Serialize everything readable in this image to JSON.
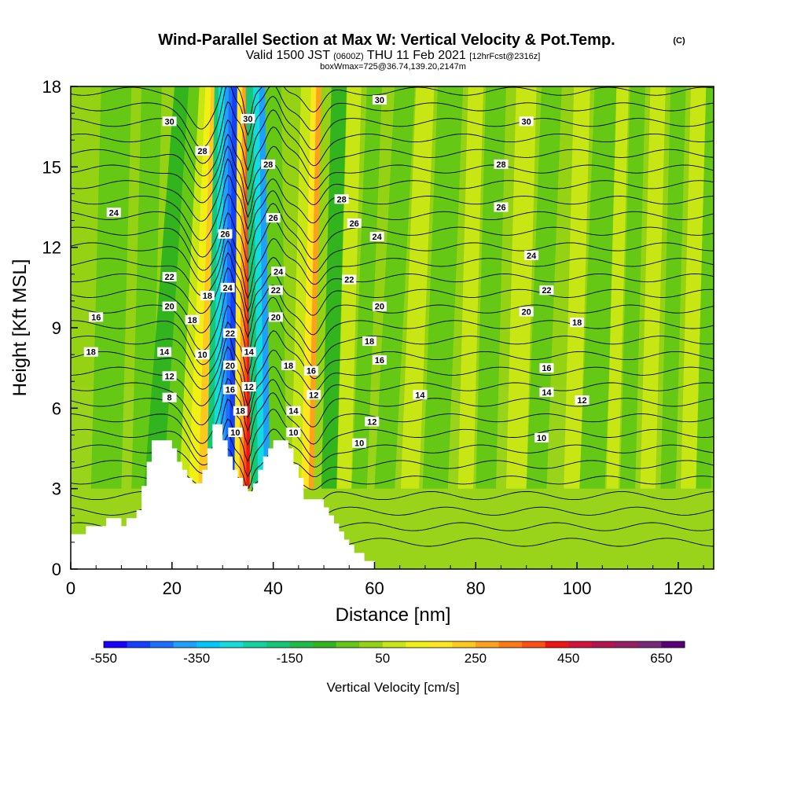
{
  "chart_data": {
    "type": "heatmap",
    "title": "Wind-Parallel Section at Max W: Vertical Velocity & Pot.Temp.",
    "title_mark": "(C)",
    "subtitle_prefix": "Valid 1500 JST",
    "subtitle_zone": "(0600Z)",
    "subtitle_date": "THU 11 Feb 2021",
    "subtitle_fcst": "[12hrFcst@2316z]",
    "subtitle2": "boxWmax=725@36.74,139.20,2147m",
    "xlabel": "Distance [nm]",
    "ylabel": "Height [Kft MSL]",
    "xlim": [
      0,
      127
    ],
    "ylim": [
      0,
      18
    ],
    "x_ticks": [
      "0",
      "20",
      "40",
      "60",
      "80",
      "100",
      "120"
    ],
    "y_ticks": [
      "0",
      "3",
      "6",
      "9",
      "12",
      "15",
      "18"
    ],
    "colorbar": {
      "label": "Vertical Velocity [cm/s]",
      "tick_labels": [
        "-550",
        "-350",
        "-150",
        "50",
        "250",
        "450",
        "650"
      ],
      "colors": [
        "#1a00ff",
        "#1440ff",
        "#1e6eff",
        "#1ea0ff",
        "#00c8ff",
        "#14dcdc",
        "#14d2a0",
        "#14c878",
        "#1ebe46",
        "#32b41e",
        "#64c814",
        "#96d214",
        "#c8e614",
        "#f0f014",
        "#ffe61e",
        "#ffc81e",
        "#ffa01e",
        "#ff7814",
        "#ff5014",
        "#f01414",
        "#d2143c",
        "#b41450",
        "#961e64",
        "#782878",
        "#5a0078"
      ]
    },
    "terrain": [
      [
        0,
        1.3
      ],
      [
        3,
        1.3
      ],
      [
        3,
        1.6
      ],
      [
        7,
        1.6
      ],
      [
        7,
        1.9
      ],
      [
        10,
        1.9
      ],
      [
        10,
        1.6
      ],
      [
        11,
        1.6
      ],
      [
        11,
        1.9
      ],
      [
        13,
        1.9
      ],
      [
        13,
        2.2
      ],
      [
        14,
        2.2
      ],
      [
        14,
        3.1
      ],
      [
        15,
        3.1
      ],
      [
        15,
        4.0
      ],
      [
        16,
        4.0
      ],
      [
        16,
        4.8
      ],
      [
        20,
        4.8
      ],
      [
        20,
        4.5
      ],
      [
        21,
        4.5
      ],
      [
        21,
        4.0
      ],
      [
        22,
        4.0
      ],
      [
        22,
        3.7
      ],
      [
        23,
        3.7
      ],
      [
        23,
        3.4
      ],
      [
        24,
        3.4
      ],
      [
        24,
        3.2
      ],
      [
        26,
        3.2
      ],
      [
        26,
        3.7
      ],
      [
        27,
        3.7
      ],
      [
        27,
        4.5
      ],
      [
        28,
        4.5
      ],
      [
        28,
        5.4
      ],
      [
        30,
        5.4
      ],
      [
        30,
        4.8
      ],
      [
        31,
        4.8
      ],
      [
        31,
        4.2
      ],
      [
        32,
        4.2
      ],
      [
        32,
        3.7
      ],
      [
        33,
        3.7
      ],
      [
        33,
        3.4
      ],
      [
        34,
        3.4
      ],
      [
        34,
        3.1
      ],
      [
        35,
        3.1
      ],
      [
        35,
        2.9
      ],
      [
        36,
        2.9
      ],
      [
        36,
        3.2
      ],
      [
        37,
        3.2
      ],
      [
        37,
        3.7
      ],
      [
        38,
        3.7
      ],
      [
        38,
        4.2
      ],
      [
        39,
        4.2
      ],
      [
        39,
        4.5
      ],
      [
        40,
        4.5
      ],
      [
        40,
        4.8
      ],
      [
        43,
        4.8
      ],
      [
        43,
        4.5
      ],
      [
        44,
        4.5
      ],
      [
        44,
        3.9
      ],
      [
        45,
        3.9
      ],
      [
        45,
        3.4
      ],
      [
        46,
        3.4
      ],
      [
        46,
        2.6
      ],
      [
        50,
        2.6
      ],
      [
        50,
        2.3
      ],
      [
        51,
        2.3
      ],
      [
        51,
        2.0
      ],
      [
        52,
        2.0
      ],
      [
        52,
        1.7
      ],
      [
        53,
        1.7
      ],
      [
        53,
        1.4
      ],
      [
        54,
        1.4
      ],
      [
        54,
        1.1
      ],
      [
        55,
        1.1
      ],
      [
        55,
        0.9
      ],
      [
        56,
        0.9
      ],
      [
        56,
        0.6
      ],
      [
        58,
        0.6
      ],
      [
        58,
        0.3
      ],
      [
        60,
        0.3
      ],
      [
        60,
        0.0
      ]
    ],
    "contour_labels": [
      {
        "x": 19.5,
        "y": 16.7,
        "text": "30"
      },
      {
        "x": 26,
        "y": 15.6,
        "text": "28"
      },
      {
        "x": 8.5,
        "y": 13.3,
        "text": "24"
      },
      {
        "x": 19.5,
        "y": 10.9,
        "text": "22"
      },
      {
        "x": 19.5,
        "y": 9.8,
        "text": "20"
      },
      {
        "x": 27,
        "y": 10.2,
        "text": "18"
      },
      {
        "x": 5,
        "y": 9.4,
        "text": "16"
      },
      {
        "x": 24,
        "y": 9.3,
        "text": "18"
      },
      {
        "x": 4,
        "y": 8.1,
        "text": "18"
      },
      {
        "x": 18.5,
        "y": 8.1,
        "text": "14"
      },
      {
        "x": 26,
        "y": 8.0,
        "text": "10"
      },
      {
        "x": 19.5,
        "y": 7.2,
        "text": "12"
      },
      {
        "x": 19.5,
        "y": 6.4,
        "text": "8"
      },
      {
        "x": 30.5,
        "y": 12.5,
        "text": "26"
      },
      {
        "x": 31,
        "y": 10.5,
        "text": "24"
      },
      {
        "x": 31.5,
        "y": 8.8,
        "text": "22"
      },
      {
        "x": 31.5,
        "y": 7.6,
        "text": "20"
      },
      {
        "x": 31.5,
        "y": 6.7,
        "text": "16"
      },
      {
        "x": 33.5,
        "y": 5.9,
        "text": "18"
      },
      {
        "x": 32.5,
        "y": 5.1,
        "text": "10"
      },
      {
        "x": 35.2,
        "y": 8.1,
        "text": "14"
      },
      {
        "x": 35.2,
        "y": 6.8,
        "text": "12"
      },
      {
        "x": 35,
        "y": 16.8,
        "text": "30"
      },
      {
        "x": 39,
        "y": 15.1,
        "text": "28"
      },
      {
        "x": 40,
        "y": 13.1,
        "text": "26"
      },
      {
        "x": 41,
        "y": 11.1,
        "text": "24"
      },
      {
        "x": 40.5,
        "y": 10.4,
        "text": "22"
      },
      {
        "x": 40.5,
        "y": 9.4,
        "text": "20"
      },
      {
        "x": 43,
        "y": 7.6,
        "text": "18"
      },
      {
        "x": 44,
        "y": 5.9,
        "text": "14"
      },
      {
        "x": 44,
        "y": 5.1,
        "text": "10"
      },
      {
        "x": 47.5,
        "y": 7.4,
        "text": "16"
      },
      {
        "x": 48,
        "y": 6.5,
        "text": "12"
      },
      {
        "x": 53.5,
        "y": 13.8,
        "text": "28"
      },
      {
        "x": 56,
        "y": 12.9,
        "text": "26"
      },
      {
        "x": 60.5,
        "y": 12.4,
        "text": "24"
      },
      {
        "x": 55,
        "y": 10.8,
        "text": "22"
      },
      {
        "x": 61,
        "y": 9.8,
        "text": "20"
      },
      {
        "x": 59,
        "y": 8.5,
        "text": "18"
      },
      {
        "x": 61,
        "y": 7.8,
        "text": "16"
      },
      {
        "x": 69,
        "y": 6.5,
        "text": "14"
      },
      {
        "x": 59.5,
        "y": 5.5,
        "text": "12"
      },
      {
        "x": 57,
        "y": 4.7,
        "text": "10"
      },
      {
        "x": 61,
        "y": 17.5,
        "text": "30"
      },
      {
        "x": 90,
        "y": 16.7,
        "text": "30"
      },
      {
        "x": 85,
        "y": 15.1,
        "text": "28"
      },
      {
        "x": 85,
        "y": 13.5,
        "text": "26"
      },
      {
        "x": 91,
        "y": 11.7,
        "text": "24"
      },
      {
        "x": 94,
        "y": 10.4,
        "text": "22"
      },
      {
        "x": 90,
        "y": 9.6,
        "text": "20"
      },
      {
        "x": 100,
        "y": 9.2,
        "text": "18"
      },
      {
        "x": 94,
        "y": 7.5,
        "text": "16"
      },
      {
        "x": 94,
        "y": 6.6,
        "text": "14"
      },
      {
        "x": 101,
        "y": 6.3,
        "text": "12"
      },
      {
        "x": 93,
        "y": 4.9,
        "text": "10"
      }
    ]
  }
}
